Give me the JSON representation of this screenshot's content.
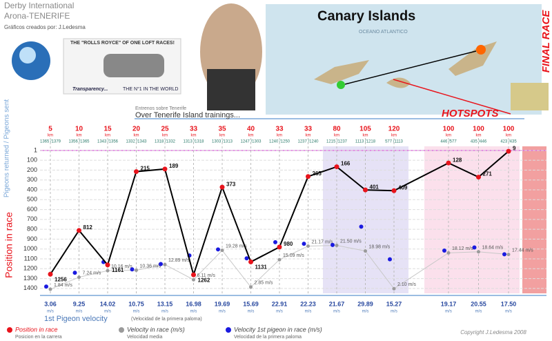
{
  "header": {
    "line1": "Derby International",
    "line2": "Arona-TENERIFE",
    "credit": "Gráficos creados por: J.Ledesma",
    "ad_title": "THE \"ROLLS ROYCE\" OF ONE LOFT RACES!",
    "ad_left": "Transparency...",
    "ad_right": "THE N°1 IN THE WORLD",
    "map_title": "Canary Islands",
    "map_ocean": "OCEANO ATLANTICO",
    "hotspots": "HOTSPOTS",
    "final_race": "FINAL RACE",
    "section_small": "Entrenos sobre Tenerife",
    "section_big": "Over Tenerife Island trainings...",
    "copyright": "Copyright J.Ledesma 2008"
  },
  "chart_data": {
    "type": "line",
    "top_label": "Pigeons returned / Pigeons sent",
    "ylabel": "Position in race",
    "km": [
      5,
      10,
      15,
      20,
      25,
      33,
      35,
      40,
      33,
      33,
      80,
      105,
      120,
      100,
      100,
      100
    ],
    "km_unit": "km",
    "pigeons": [
      "1365 /1379",
      "1356 /1365",
      "1343 /1356",
      "1332 /1343",
      "1318 /1332",
      "1313 /1318",
      "1303 /1313",
      "1247 /1303",
      "1240 /1250",
      "1237 /1240",
      "1215 /1237",
      "1113 /1218",
      "577 /1113",
      "446 /577",
      "435 /446",
      "423 /435"
    ],
    "ylim": [
      1,
      1450
    ],
    "inverted": true,
    "yticks": [
      1,
      100,
      200,
      300,
      400,
      500,
      600,
      700,
      800,
      900,
      1000,
      1100,
      1200,
      1300,
      1400
    ],
    "y2lim": [
      0,
      64
    ],
    "grid": true,
    "speed_title": "1st Pigeon velocity",
    "speed_subtitle": "(Velocidad de la primera paloma)",
    "speed_unit": "m/s",
    "series": [
      {
        "name": "Position in race",
        "name_es": "Posicion en la carrera",
        "color": "#e8141c",
        "values": [
          1256,
          812,
          1161,
          215,
          189,
          1262,
          373,
          1131,
          980,
          265,
          166,
          401,
          409,
          128,
          271,
          9
        ]
      },
      {
        "name": "Velocity in race (m/s)",
        "name_es": "Velocidad media",
        "color": "#9a9a9a",
        "axis": "y2",
        "values": [
          1.84,
          7.24,
          10.16,
          10.36,
          12.89,
          6.11,
          19.28,
          2.85,
          15.09,
          21.17,
          21.5,
          18.98,
          2.1,
          18.12,
          18.64,
          17.44
        ],
        "value_labels": [
          "1.84 m/s",
          "7.24 m/s",
          "10.16 m/s",
          "10.36 m/s",
          "12.89 m/s",
          "6.11 m/s",
          "19.28 m/s",
          "2.85 m/s",
          "15.09 m/s",
          "21.17 m/s",
          "21.50 m/s",
          "18.98 m/s",
          "2.10 m/s",
          "18.12 m/s",
          "18.64 m/s",
          "17.44 m/s"
        ]
      },
      {
        "name": "Velocity 1st pigeon in race (m/s)",
        "name_es": "Velocidad de la primera paloma",
        "color": "#1a1ae0",
        "axis": "y2",
        "values": [
          3.06,
          9.25,
          14.02,
          10.75,
          13.15,
          16.98,
          19.69,
          15.69,
          22.91,
          22.23,
          21.67,
          29.89,
          15.27,
          19.17,
          20.55,
          17.5
        ],
        "value_labels": [
          "3.06",
          "9.25",
          "14.02",
          "10.75",
          "13.15",
          "16.98",
          "19.69",
          "15.69",
          "22.91",
          "22.23",
          "21.67",
          "29.89",
          "15.27",
          "19.17",
          "20.55",
          "17.50"
        ]
      }
    ]
  }
}
